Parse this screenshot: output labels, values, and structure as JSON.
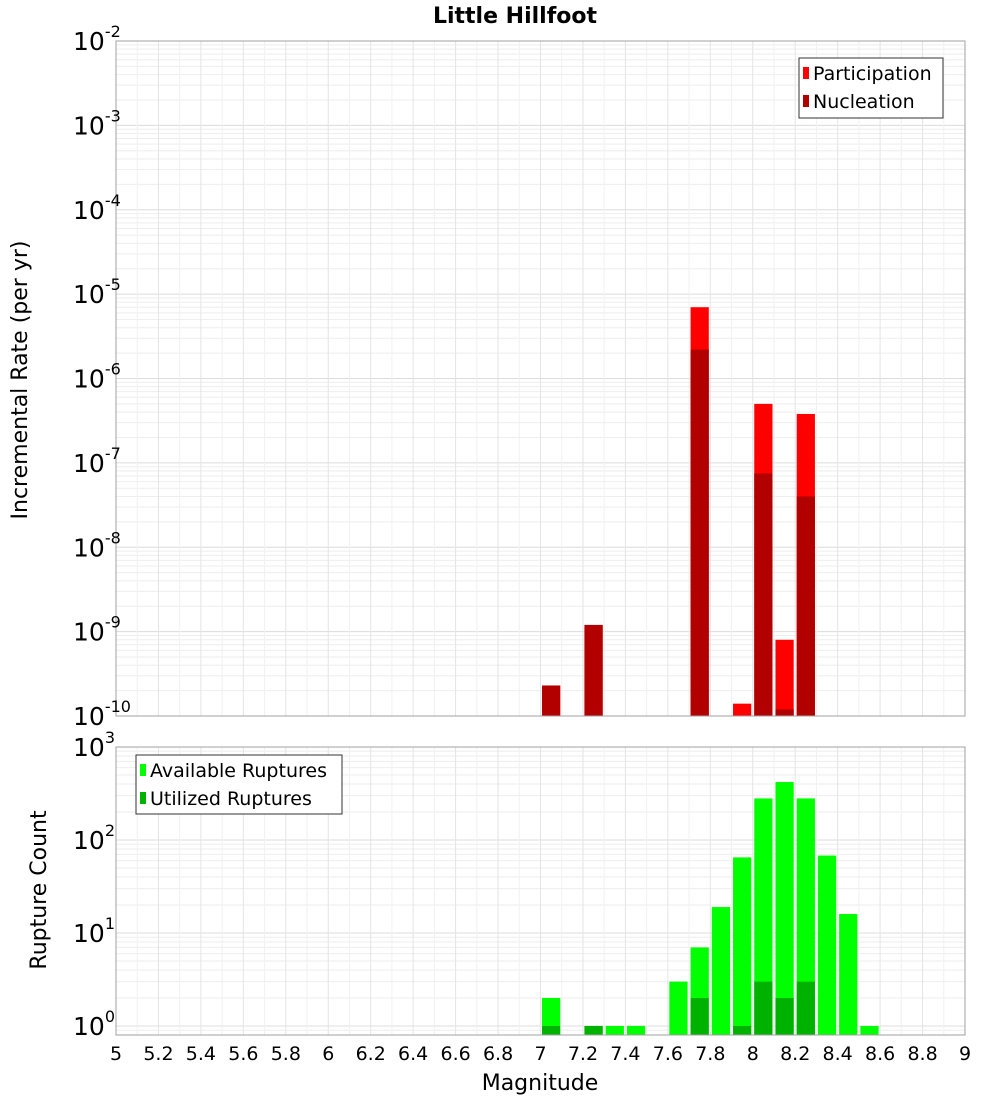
{
  "chart_data": {
    "type": "bar",
    "title": "Little Hillfoot",
    "xlabel": "Magnitude",
    "x_ticks": [
      "5",
      "5.2",
      "5.4",
      "5.6",
      "5.8",
      "6",
      "6.2",
      "6.4",
      "6.6",
      "6.8",
      "7",
      "7.2",
      "7.4",
      "7.6",
      "7.8",
      "8",
      "8.2",
      "8.4",
      "8.6",
      "8.8",
      "9"
    ],
    "xlim": [
      5,
      9
    ],
    "grid": true,
    "panels": [
      {
        "ylabel": "Incremental Rate (per yr)",
        "yscale": "log",
        "ylim": [
          1e-10,
          0.01
        ],
        "y_tick_exponents": [
          "-10",
          "-9",
          "-8",
          "-7",
          "-6",
          "-5",
          "-4",
          "-3",
          "-2"
        ],
        "legend_position": "top-right",
        "colors": {
          "Participation": "#ff0000",
          "Nucleation": "#b20000"
        },
        "series": [
          {
            "name": "Participation",
            "x": [
              7.05,
              7.25,
              7.75,
              7.95,
              8.05,
              8.15,
              8.25
            ],
            "values": [
              2.3e-10,
              1.2e-09,
              7e-06,
              1.4e-10,
              5e-07,
              8e-10,
              3.8e-07
            ]
          },
          {
            "name": "Nucleation",
            "x": [
              7.05,
              7.25,
              7.75,
              8.05,
              8.15,
              8.25
            ],
            "values": [
              2.3e-10,
              1.2e-09,
              2.2e-06,
              7.5e-08,
              1.2e-10,
              4e-08
            ]
          }
        ]
      },
      {
        "ylabel": "Rupture Count",
        "yscale": "log",
        "ylim": [
          0.8,
          1000
        ],
        "y_tick_exponents": [
          "0",
          "1",
          "2",
          "3"
        ],
        "legend_position": "top-left",
        "colors": {
          "Available Ruptures": "#00ff00",
          "Utilized Ruptures": "#00b200"
        },
        "series": [
          {
            "name": "Available Ruptures",
            "x": [
              7.05,
              7.25,
              7.35,
              7.45,
              7.65,
              7.75,
              7.85,
              7.95,
              8.05,
              8.15,
              8.25,
              8.35,
              8.45,
              8.55
            ],
            "values": [
              2,
              1,
              1,
              1,
              3,
              7,
              19,
              65,
              280,
              420,
              280,
              68,
              16,
              1
            ]
          },
          {
            "name": "Utilized Ruptures",
            "x": [
              7.05,
              7.25,
              7.75,
              7.95,
              8.05,
              8.15,
              8.25
            ],
            "values": [
              1,
              1,
              2,
              1,
              3,
              2,
              3
            ]
          }
        ]
      }
    ]
  }
}
